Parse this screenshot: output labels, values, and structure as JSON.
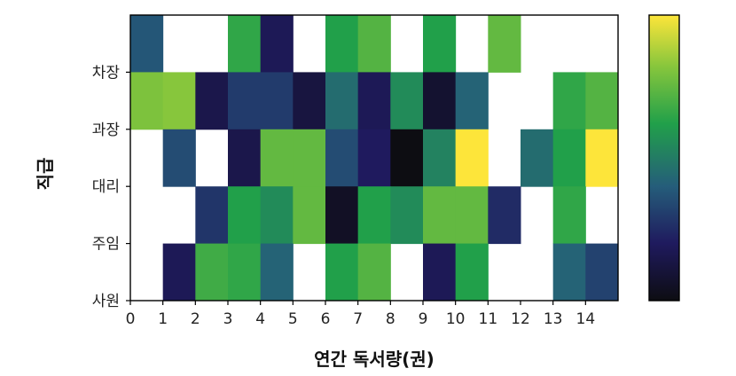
{
  "chart_data": {
    "type": "heatmap",
    "title": "",
    "xlabel": "연간 독서량(권)",
    "ylabel": "직급",
    "x_ticks": [
      "0",
      "1",
      "2",
      "3",
      "4",
      "5",
      "6",
      "7",
      "8",
      "9",
      "10",
      "11",
      "12",
      "13",
      "14"
    ],
    "xlim": [
      0,
      15
    ],
    "y_ticks": [
      "사원",
      "주임",
      "대리",
      "과장",
      "차장"
    ],
    "colorbar": {
      "colormap": "viridis-like (black → navy → teal → green → yellow)",
      "min": 0,
      "max": 1
    },
    "grid": false,
    "rows_top_to_bottom": [
      {
        "row_span": "above 차장",
        "values": [
          0.38,
          null,
          null,
          0.65,
          0.18,
          null,
          0.62,
          0.72,
          null,
          0.62,
          null,
          0.75,
          null,
          null,
          null
        ]
      },
      {
        "row_span": "차장–과장",
        "values": [
          0.8,
          0.82,
          0.15,
          0.3,
          0.3,
          0.12,
          0.45,
          0.18,
          0.55,
          0.08,
          0.42,
          null,
          null,
          0.65,
          0.72
        ]
      },
      {
        "row_span": "과장–대리",
        "values": [
          null,
          0.35,
          null,
          0.15,
          0.75,
          0.75,
          0.35,
          0.2,
          0.0,
          0.52,
          1.0,
          null,
          0.45,
          0.62,
          1.0
        ]
      },
      {
        "row_span": "대리–주임",
        "values": [
          null,
          null,
          0.28,
          0.62,
          0.55,
          0.75,
          0.05,
          0.62,
          0.55,
          0.75,
          0.75,
          0.25,
          null,
          0.65,
          null
        ]
      },
      {
        "row_span": "주임–사원",
        "values": [
          null,
          0.18,
          0.68,
          0.65,
          0.42,
          null,
          0.62,
          0.72,
          null,
          0.18,
          0.62,
          null,
          null,
          0.42,
          0.32
        ]
      }
    ]
  }
}
